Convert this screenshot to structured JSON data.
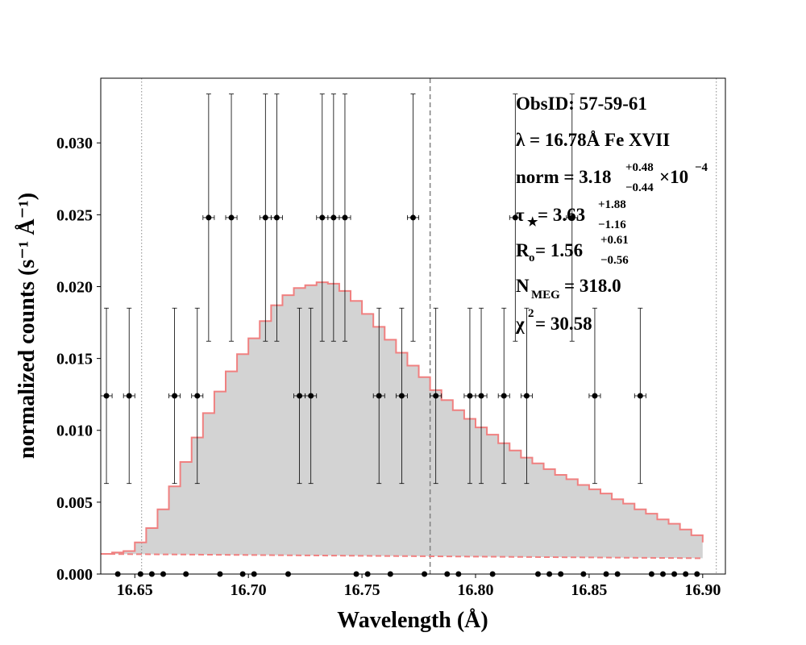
{
  "chart_data": {
    "type": "line",
    "xlabel": "Wavelength (Å)",
    "ylabel": "normalized counts (s⁻¹ Å⁻¹)",
    "xlim": [
      16.635,
      16.91
    ],
    "ylim": [
      0,
      0.0345
    ],
    "x_ticks": [
      "16.65",
      "16.70",
      "16.75",
      "16.80",
      "16.85",
      "16.90"
    ],
    "y_ticks": [
      "0.000",
      "0.005",
      "0.010",
      "0.015",
      "0.020",
      "0.025",
      "0.030"
    ],
    "x_tick_values": [
      16.65,
      16.7,
      16.75,
      16.8,
      16.85,
      16.9
    ],
    "y_tick_values": [
      0,
      0.005,
      0.01,
      0.015,
      0.02,
      0.025,
      0.03
    ],
    "grid": false,
    "vlines": [
      {
        "x": 16.653,
        "style": "dotted",
        "color": "#888888"
      },
      {
        "x": 16.78,
        "style": "dashed",
        "color": "#808080"
      },
      {
        "x": 16.906,
        "style": "dotted",
        "color": "#888888"
      }
    ],
    "model": {
      "color": "#f08080",
      "fill": "#d3d3d3",
      "x": [
        16.635,
        16.64,
        16.645,
        16.65,
        16.655,
        16.66,
        16.665,
        16.67,
        16.675,
        16.68,
        16.685,
        16.69,
        16.695,
        16.7,
        16.705,
        16.71,
        16.715,
        16.72,
        16.725,
        16.73,
        16.735,
        16.74,
        16.745,
        16.75,
        16.755,
        16.76,
        16.765,
        16.77,
        16.775,
        16.78,
        16.785,
        16.79,
        16.795,
        16.8,
        16.805,
        16.81,
        16.815,
        16.82,
        16.825,
        16.83,
        16.835,
        16.84,
        16.845,
        16.85,
        16.855,
        16.86,
        16.865,
        16.87,
        16.875,
        16.88,
        16.885,
        16.89,
        16.895,
        16.9
      ],
      "y": [
        0.0014,
        0.0015,
        0.0016,
        0.0022,
        0.0032,
        0.0045,
        0.0061,
        0.0078,
        0.0095,
        0.0112,
        0.0127,
        0.0141,
        0.0153,
        0.0164,
        0.0176,
        0.0187,
        0.0194,
        0.0199,
        0.0201,
        0.0203,
        0.0202,
        0.0197,
        0.019,
        0.0181,
        0.0172,
        0.0163,
        0.0154,
        0.0145,
        0.0137,
        0.0128,
        0.0121,
        0.0114,
        0.0108,
        0.0102,
        0.0097,
        0.0091,
        0.0086,
        0.0081,
        0.0077,
        0.0073,
        0.0069,
        0.0066,
        0.0062,
        0.0059,
        0.0056,
        0.0052,
        0.0049,
        0.0045,
        0.0042,
        0.0038,
        0.0035,
        0.0031,
        0.0027,
        0.0022
      ]
    },
    "background": {
      "x": [
        16.635,
        16.9
      ],
      "y": [
        0.0014,
        0.0011
      ],
      "color": "#f08080",
      "style": "dashed"
    },
    "data_points": {
      "x": [
        16.6375,
        16.6475,
        16.6675,
        16.6775,
        16.6825,
        16.6925,
        16.7075,
        16.7125,
        16.7225,
        16.7275,
        16.7325,
        16.7375,
        16.7425,
        16.7575,
        16.7675,
        16.7725,
        16.7825,
        16.7975,
        16.8025,
        16.8125,
        16.8175,
        16.8225,
        16.8425,
        16.8525,
        16.8725
      ],
      "y": [
        0.0124,
        0.0124,
        0.0124,
        0.0124,
        0.0248,
        0.0248,
        0.0248,
        0.0248,
        0.0124,
        0.0124,
        0.0248,
        0.0248,
        0.0248,
        0.0124,
        0.0124,
        0.0248,
        0.0124,
        0.0124,
        0.0124,
        0.0124,
        0.0248,
        0.0124,
        0.0248,
        0.0124,
        0.0124
      ],
      "yerr": [
        0.0061,
        0.0061,
        0.0061,
        0.0061,
        0.0086,
        0.0086,
        0.0086,
        0.0086,
        0.0061,
        0.0061,
        0.0086,
        0.0086,
        0.0086,
        0.0061,
        0.0061,
        0.0086,
        0.0061,
        0.0061,
        0.0061,
        0.0061,
        0.0086,
        0.0061,
        0.0086,
        0.0061,
        0.0061
      ],
      "xerr": 0.0025
    },
    "zero_points": {
      "x": [
        16.6425,
        16.6525,
        16.6575,
        16.6625,
        16.6725,
        16.6875,
        16.6975,
        16.7025,
        16.7175,
        16.7475,
        16.7525,
        16.7625,
        16.7775,
        16.7875,
        16.7925,
        16.8075,
        16.8275,
        16.8325,
        16.8375,
        16.8475,
        16.8575,
        16.8625,
        16.8775,
        16.8825,
        16.8875,
        16.8925,
        16.8975
      ],
      "y": 0
    }
  },
  "annotations": {
    "obsid": "ObsID: 57-59-61",
    "line": "λ = 16.78Å Fe XVII",
    "norm_main": "norm = 3.18",
    "norm_sup": "+0.48",
    "norm_sub": "−0.44",
    "norm_tail": "×10",
    "norm_exp": "−4",
    "tau_main": "τ",
    "tau_star": "★",
    "tau_value": " = 3.63",
    "tau_sup": "+1.88",
    "tau_sub": "−1.16",
    "r_main": "R",
    "r_o": "o",
    "r_value": " = 1.56",
    "r_sup": "+0.61",
    "r_sub": "−0.56",
    "n_main": "N",
    "n_sub": "MEG",
    "n_value": " = 318.0",
    "chi_main": "χ",
    "chi_sup": "2",
    "chi_value": " = 30.58"
  }
}
